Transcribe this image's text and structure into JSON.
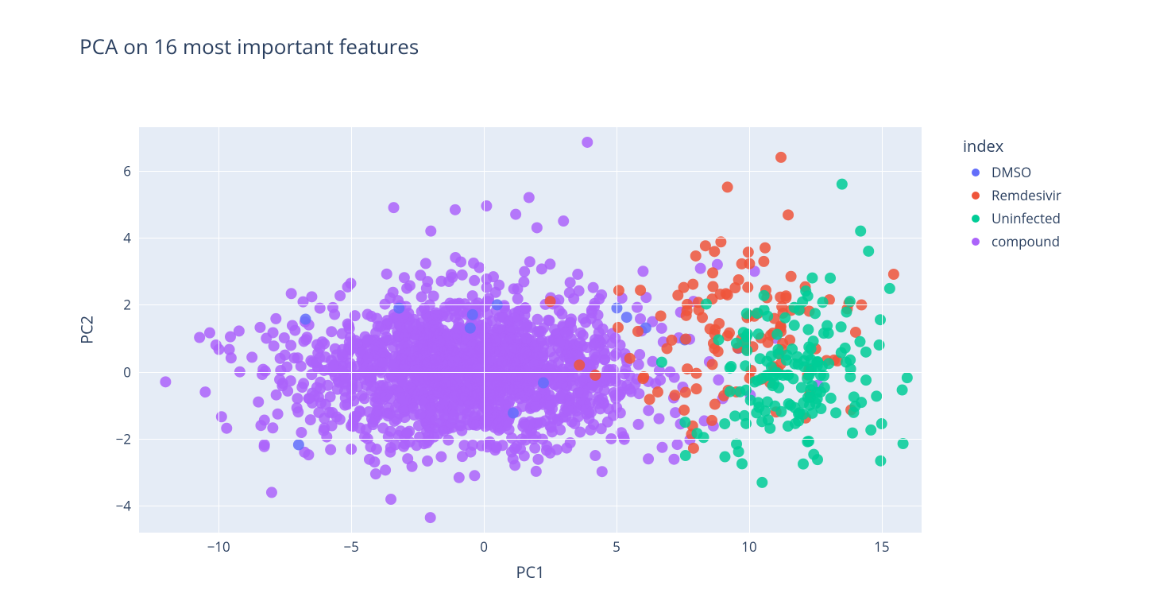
{
  "chart": {
    "type": "scatter",
    "title": "PCA on 16 most important features",
    "title_fontsize": 26,
    "title_color": "#2a3f5f",
    "background_color": "#ffffff",
    "plot_background_color": "#e5ecf6",
    "grid_color": "#ffffff",
    "label_fontsize": 20,
    "tick_fontsize": 17,
    "text_color": "#2a3f5f",
    "xlabel": "PC1",
    "ylabel": "PC2",
    "xlim": [
      -13.0,
      16.5
    ],
    "ylim": [
      -4.8,
      7.3
    ],
    "xtick_step": 5,
    "xtick_start": -10,
    "xtick_end": 15,
    "ytick_step": 2,
    "ytick_start": -4,
    "ytick_end": 6,
    "marker_radius": 7,
    "marker_opacity": 0.85,
    "legend": {
      "title": "index",
      "position": "right"
    },
    "series": [
      {
        "name": "DMSO",
        "label": "DMSO",
        "color": "#636efa",
        "generator": {
          "n": 10,
          "cx": 1.5,
          "cy": 0.5,
          "sx": 4.0,
          "sy": 1.2,
          "seed": 101
        },
        "extra_points": [
          [
            9.6,
            0.7
          ],
          [
            -3.2,
            1.9
          ],
          [
            0.5,
            2.0
          ]
        ]
      },
      {
        "name": "Remdesivir",
        "label": "Remdesivir",
        "color": "#ef553b",
        "generator": {
          "n": 120,
          "cx": 9.5,
          "cy": 1.3,
          "sx": 2.2,
          "sy": 1.4,
          "seed": 202
        },
        "extra_points": [
          [
            11.2,
            6.4
          ],
          [
            10.6,
            3.7
          ],
          [
            7.2,
            -0.7
          ],
          [
            6.0,
            -0.2
          ],
          [
            5.5,
            0.4
          ],
          [
            4.2,
            -0.1
          ],
          [
            3.6,
            0.2
          ],
          [
            2.5,
            2.1
          ]
        ]
      },
      {
        "name": "Uninfected",
        "label": "Uninfected",
        "color": "#00cc96",
        "generator": {
          "n": 160,
          "cx": 12.0,
          "cy": -0.2,
          "sx": 1.6,
          "sy": 1.3,
          "seed": 303
        },
        "extra_points": [
          [
            13.5,
            5.6
          ],
          [
            14.2,
            4.2
          ],
          [
            14.5,
            3.6
          ],
          [
            13.8,
            2.1
          ],
          [
            14.9,
            0.8
          ],
          [
            7.6,
            -2.5
          ]
        ]
      },
      {
        "name": "compound",
        "label": "compound",
        "color": "#ab63fa",
        "generator": {
          "n": 1700,
          "cx": -0.5,
          "cy": 0.0,
          "sx": 3.3,
          "sy": 1.15,
          "seed": 404
        },
        "extra_points": [
          [
            -12.0,
            -0.3
          ],
          [
            -10.1,
            0.8
          ],
          [
            -9.2,
            0.0
          ],
          [
            -8.5,
            -0.9
          ],
          [
            -8.2,
            1.0
          ],
          [
            -8.0,
            -3.6
          ],
          [
            -7.5,
            0.5
          ],
          [
            -7.0,
            -1.2
          ],
          [
            -6.6,
            1.4
          ],
          [
            -3.4,
            4.9
          ],
          [
            -2.0,
            4.2
          ],
          [
            0.1,
            4.95
          ],
          [
            1.2,
            4.7
          ],
          [
            1.7,
            5.2
          ],
          [
            2.0,
            4.3
          ],
          [
            3.0,
            4.5
          ],
          [
            3.9,
            6.85
          ],
          [
            6.0,
            3.0
          ],
          [
            6.7,
            1.3
          ],
          [
            7.9,
            2.1
          ],
          [
            8.8,
            3.2
          ],
          [
            10.2,
            3.0
          ],
          [
            11.0,
            1.0
          ],
          [
            12.6,
            -0.4
          ],
          [
            4.2,
            -2.5
          ],
          [
            4.8,
            -2.0
          ],
          [
            6.2,
            -2.6
          ],
          [
            5.2,
            2.2
          ],
          [
            8.5,
            0.3
          ],
          [
            9.0,
            -0.8
          ]
        ]
      }
    ]
  }
}
